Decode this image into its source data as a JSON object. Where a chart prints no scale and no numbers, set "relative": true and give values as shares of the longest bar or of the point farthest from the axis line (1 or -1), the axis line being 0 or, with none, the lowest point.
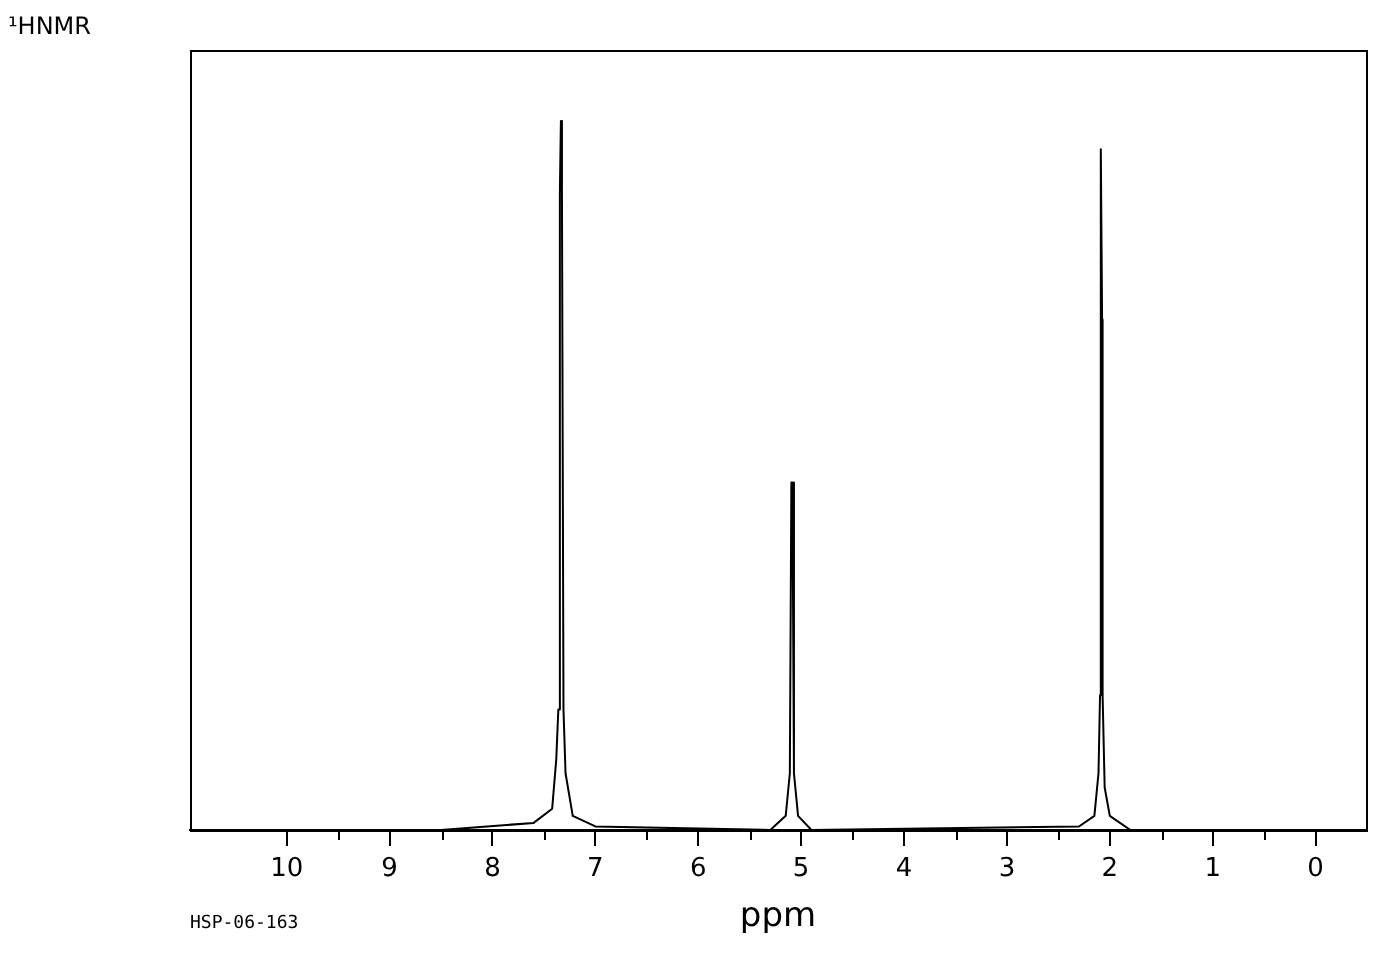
{
  "chart_data": {
    "type": "line",
    "title": "¹HNMR",
    "xlabel": "ppm",
    "annotations": [
      "HSP-06-163"
    ],
    "relative": true,
    "legend": false,
    "marker": "none",
    "line_style": "solid",
    "xlim": [
      10.94,
      -0.49
    ],
    "xticks": [
      10,
      {
        "value": 9.5,
        "label": null
      },
      9,
      {
        "value": 8.5,
        "label": null
      },
      8,
      {
        "value": 7.5,
        "label": null
      },
      7,
      {
        "value": 6.5,
        "label": null
      },
      6,
      {
        "value": 5.5,
        "label": null
      },
      5,
      {
        "value": 4.5,
        "label": null
      },
      4,
      {
        "value": 3.5,
        "label": null
      },
      3,
      {
        "value": 2.5,
        "label": null
      },
      2,
      {
        "value": 1.5,
        "label": null
      },
      1,
      {
        "value": 0.5,
        "label": null
      },
      0
    ],
    "series": [
      {
        "color": "#000000",
        "x": [
          10.94,
          8.5,
          7.6,
          7.42,
          7.38,
          7.36,
          7.345,
          7.335,
          7.325,
          7.31,
          7.29,
          7.22,
          7.0,
          5.3,
          5.15,
          5.11,
          5.095,
          5.085,
          5.07,
          5.03,
          4.9,
          2.3,
          2.15,
          2.11,
          2.095,
          2.09,
          2.085,
          2.075,
          2.07,
          2.05,
          2.0,
          1.8,
          -0.49
        ],
        "values": [
          0,
          0,
          0.01,
          0.03,
          0.1,
          0.17,
          0.9,
          1,
          0.9,
          0.17,
          0.08,
          0.02,
          0.005,
          0,
          0.02,
          0.08,
          0.49,
          0.49,
          0.08,
          0.02,
          0,
          0.005,
          0.02,
          0.08,
          0.19,
          0.72,
          0.96,
          0.72,
          0.19,
          0.06,
          0.02,
          0,
          0
        ]
      }
    ]
  }
}
